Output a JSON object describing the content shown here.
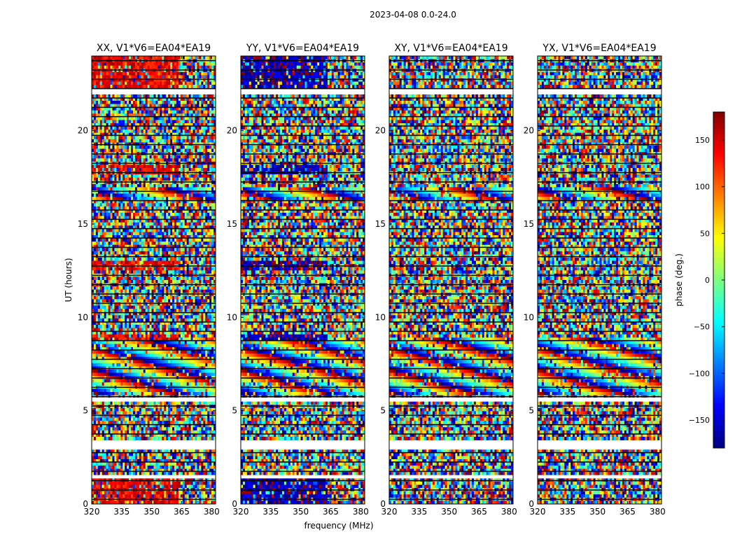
{
  "chart_data": {
    "type": "heatmap",
    "figure_title": "2023-04-08 0.0-24.0",
    "xlabel": "frequency (MHz)",
    "ylabel": "UT (hours)",
    "colorbar": {
      "label": "phase (deg.)",
      "range": [
        -180,
        180
      ],
      "ticks": [
        150,
        100,
        50,
        0,
        -50,
        -100,
        -150
      ],
      "tick_labels": [
        "150",
        "100",
        "50",
        "0",
        "−50",
        "−100",
        "−150"
      ],
      "colormap": "jet"
    },
    "x_ticks": [
      320,
      335,
      350,
      365,
      380
    ],
    "x_tick_labels": [
      "320",
      "335",
      "350",
      "365",
      "380"
    ],
    "x_range": [
      320,
      382
    ],
    "y_ticks": [
      0,
      5,
      10,
      15,
      20
    ],
    "y_tick_labels": [
      "0",
      "5",
      "10",
      "15",
      "20"
    ],
    "y_range": [
      0,
      24
    ],
    "panels": [
      {
        "title": "XX, V1*V6=EA04*EA19",
        "polarization": "XX",
        "coherent_phase_low": 140
      },
      {
        "title": "YY, V1*V6=EA04*EA19",
        "polarization": "YY",
        "coherent_phase_low": -160
      },
      {
        "title": "XY, V1*V6=EA04*EA19",
        "polarization": "XY",
        "coherent_phase_low": null
      },
      {
        "title": "YX, V1*V6=EA04*EA19",
        "polarization": "YX",
        "coherent_phase_low": null
      }
    ],
    "flagged_hours": [
      [
        2.95,
        3.35
      ],
      [
        1.4,
        1.55
      ],
      [
        5.55,
        5.7
      ],
      [
        22.0,
        22.2
      ]
    ],
    "fringe_hours": [
      [
        5.8,
        8.9
      ],
      [
        16.3,
        16.9
      ]
    ],
    "strong_phase_hours": [
      [
        0.0,
        1.5
      ],
      [
        12.6,
        13.1
      ],
      [
        17.7,
        18.1
      ],
      [
        8.8,
        9.0
      ],
      [
        22.3,
        24.0
      ]
    ],
    "low_band_edge_mhz": 363
  }
}
